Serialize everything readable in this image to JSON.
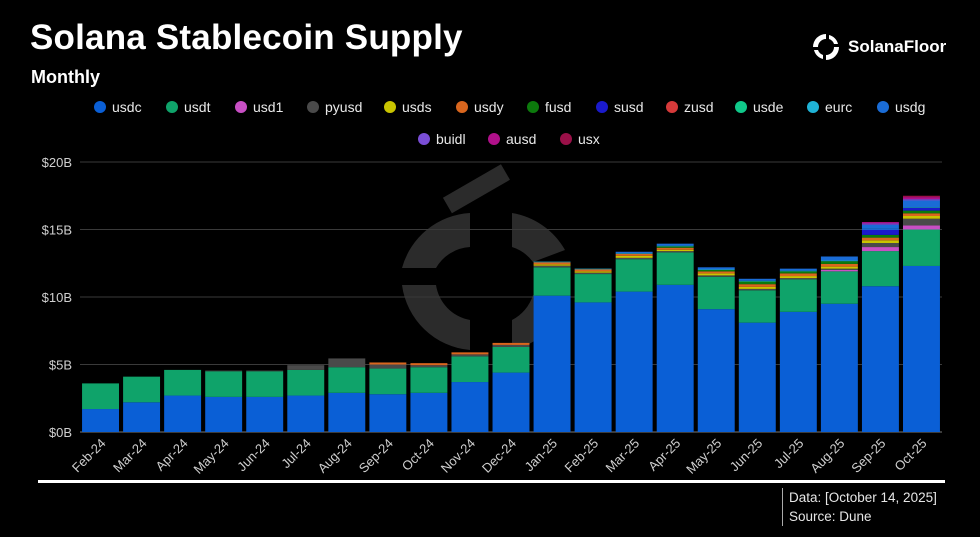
{
  "header": {
    "title": "Solana Stablecoin Supply",
    "subtitle": "Monthly",
    "brand": "SolanaFloor"
  },
  "footer": {
    "date_line": "Data: [October 14, 2025]",
    "source_line": "Source: Dune"
  },
  "chart_data": {
    "type": "bar",
    "stacked": true,
    "title": "Solana Stablecoin Supply",
    "subtitle": "Monthly",
    "ylim": [
      0,
      20
    ],
    "yticks": [
      0,
      5,
      10,
      15,
      20
    ],
    "ytick_labels": [
      "$0B",
      "$5B",
      "$10B",
      "$15B",
      "$20B"
    ],
    "grid": true,
    "legend_position": "top",
    "categories": [
      "Feb-24",
      "Mar-24",
      "Apr-24",
      "May-24",
      "Jun-24",
      "Jul-24",
      "Aug-24",
      "Sep-24",
      "Oct-24",
      "Nov-24",
      "Dec-24",
      "Jan-25",
      "Feb-25",
      "Mar-25",
      "Apr-25",
      "May-25",
      "Jun-25",
      "Jul-25",
      "Aug-25",
      "Sep-25",
      "Oct-25"
    ],
    "series": [
      {
        "name": "usdc",
        "color": "#0a5fd6",
        "values": [
          1.7,
          2.2,
          2.7,
          2.6,
          2.6,
          2.7,
          2.9,
          2.8,
          2.9,
          3.7,
          4.4,
          10.1,
          9.6,
          10.4,
          10.9,
          9.1,
          8.1,
          8.9,
          9.5,
          10.8,
          12.3
        ]
      },
      {
        "name": "usdt",
        "color": "#0fa36a",
        "values": [
          1.9,
          1.9,
          1.9,
          1.9,
          1.9,
          1.9,
          1.9,
          1.9,
          1.9,
          1.9,
          1.9,
          2.1,
          2.1,
          2.4,
          2.4,
          2.4,
          2.4,
          2.4,
          2.4,
          2.6,
          2.7
        ]
      },
      {
        "name": "usd1",
        "color": "#c84fc4",
        "values": [
          0,
          0,
          0,
          0,
          0,
          0,
          0,
          0,
          0,
          0,
          0,
          0,
          0,
          0,
          0,
          0,
          0,
          0,
          0.1,
          0.3,
          0.3
        ]
      },
      {
        "name": "pyusd",
        "color": "#4a4a4a",
        "values": [
          0,
          0,
          0,
          0.05,
          0.05,
          0.35,
          0.65,
          0.3,
          0.15,
          0.15,
          0.15,
          0.12,
          0.1,
          0.1,
          0.1,
          0.1,
          0.1,
          0.1,
          0.1,
          0.3,
          0.5
        ]
      },
      {
        "name": "usds",
        "color": "#c9c400",
        "values": [
          0,
          0,
          0,
          0,
          0,
          0,
          0,
          0,
          0,
          0,
          0,
          0.1,
          0.1,
          0.15,
          0.1,
          0.15,
          0.15,
          0.15,
          0.15,
          0.2,
          0.2
        ]
      },
      {
        "name": "usdy",
        "color": "#d9661e",
        "values": [
          0,
          0,
          0,
          0,
          0,
          0,
          0,
          0.15,
          0.15,
          0.15,
          0.15,
          0.15,
          0.15,
          0.15,
          0.15,
          0.15,
          0.2,
          0.2,
          0.2,
          0.2,
          0.2
        ]
      },
      {
        "name": "fusd",
        "color": "#0c7a0c",
        "values": [
          0,
          0,
          0,
          0,
          0,
          0,
          0,
          0,
          0,
          0,
          0,
          0,
          0,
          0,
          0.1,
          0.1,
          0.2,
          0.15,
          0.2,
          0.2,
          0.2
        ]
      },
      {
        "name": "susd",
        "color": "#1a1acb",
        "values": [
          0,
          0,
          0,
          0,
          0,
          0,
          0,
          0,
          0,
          0,
          0,
          0,
          0,
          0,
          0,
          0,
          0,
          0,
          0,
          0.4,
          0.2
        ]
      },
      {
        "name": "zusd",
        "color": "#d63a3a",
        "values": [
          0,
          0,
          0,
          0,
          0,
          0,
          0,
          0,
          0,
          0,
          0,
          0,
          0,
          0,
          0,
          0,
          0,
          0,
          0,
          0,
          0
        ]
      },
      {
        "name": "usde",
        "color": "#10c98a",
        "values": [
          0,
          0,
          0,
          0,
          0,
          0,
          0,
          0,
          0,
          0,
          0,
          0,
          0,
          0,
          0,
          0,
          0,
          0,
          0,
          0,
          0
        ]
      },
      {
        "name": "eurc",
        "color": "#1fb3d6",
        "values": [
          0,
          0,
          0,
          0,
          0,
          0,
          0,
          0,
          0,
          0,
          0,
          0.05,
          0.05,
          0.05,
          0.05,
          0.05,
          0.05,
          0.05,
          0.05,
          0.05,
          0.05
        ]
      },
      {
        "name": "usdg",
        "color": "#1a6cd6",
        "values": [
          0,
          0,
          0,
          0,
          0,
          0,
          0,
          0,
          0,
          0,
          0,
          0,
          0,
          0.1,
          0.15,
          0.15,
          0.15,
          0.15,
          0.3,
          0.3,
          0.5
        ]
      },
      {
        "name": "buidl",
        "color": "#7a4ed6",
        "values": [
          0,
          0,
          0,
          0,
          0,
          0,
          0,
          0,
          0,
          0,
          0,
          0,
          0,
          0,
          0,
          0,
          0,
          0,
          0,
          0.1,
          0.1
        ]
      },
      {
        "name": "ausd",
        "color": "#b0108a",
        "values": [
          0,
          0,
          0,
          0,
          0,
          0,
          0,
          0,
          0,
          0,
          0,
          0,
          0,
          0,
          0,
          0,
          0,
          0,
          0,
          0.1,
          0.15
        ]
      },
      {
        "name": "usx",
        "color": "#9a1048",
        "values": [
          0,
          0,
          0,
          0,
          0,
          0,
          0,
          0,
          0,
          0,
          0,
          0,
          0,
          0,
          0,
          0,
          0,
          0,
          0,
          0,
          0.1
        ]
      }
    ]
  }
}
